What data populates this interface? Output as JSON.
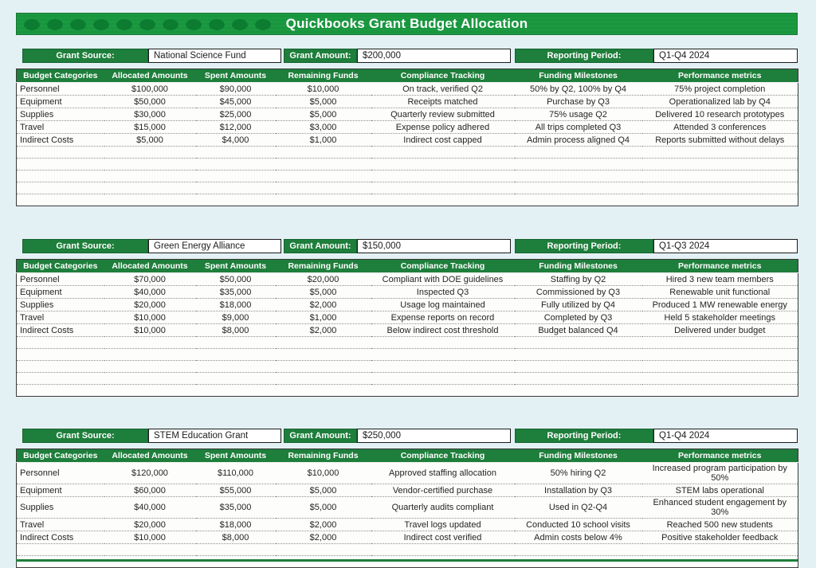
{
  "title": "Quickbooks Grant Budget Allocation",
  "labels": {
    "grant_source": "Grant Source:",
    "grant_amount": "Grant Amount:",
    "reporting_period": "Reporting Period:"
  },
  "columns": [
    "Budget Categories",
    "Allocated Amounts",
    "Spent Amounts",
    "Remaining Funds",
    "Compliance Tracking",
    "Funding Milestones",
    "Performance metrics"
  ],
  "grants": [
    {
      "source": "National Science Fund",
      "amount": "$200,000",
      "period": "Q1-Q4 2024",
      "rows": [
        [
          "Personnel",
          "$100,000",
          "$90,000",
          "$10,000",
          "On track, verified Q2",
          "50% by Q2, 100% by Q4",
          "75% project completion"
        ],
        [
          "Equipment",
          "$50,000",
          "$45,000",
          "$5,000",
          "Receipts matched",
          "Purchase by Q3",
          "Operationalized lab by Q4"
        ],
        [
          "Supplies",
          "$30,000",
          "$25,000",
          "$5,000",
          "Quarterly review submitted",
          "75% usage Q2",
          "Delivered 10 research prototypes"
        ],
        [
          "Travel",
          "$15,000",
          "$12,000",
          "$3,000",
          "Expense policy adhered",
          "All trips completed Q3",
          "Attended 3 conferences"
        ],
        [
          "Indirect Costs",
          "$5,000",
          "$4,000",
          "$1,000",
          "Indirect cost capped",
          "Admin process aligned Q4",
          "Reports submitted without delays"
        ]
      ],
      "empty_rows": 5
    },
    {
      "source": "Green Energy Alliance",
      "amount": "$150,000",
      "period": "Q1-Q3 2024",
      "rows": [
        [
          "Personnel",
          "$70,000",
          "$50,000",
          "$20,000",
          "Compliant with DOE guidelines",
          "Staffing by Q2",
          "Hired 3 new team members"
        ],
        [
          "Equipment",
          "$40,000",
          "$35,000",
          "$5,000",
          "Inspected Q3",
          "Commissioned by Q3",
          "Renewable unit functional"
        ],
        [
          "Supplies",
          "$20,000",
          "$18,000",
          "$2,000",
          "Usage log maintained",
          "Fully utilized by Q4",
          "Produced 1 MW renewable energy"
        ],
        [
          "Travel",
          "$10,000",
          "$9,000",
          "$1,000",
          "Expense reports on record",
          "Completed by Q3",
          "Held 5 stakeholder meetings"
        ],
        [
          "Indirect Costs",
          "$10,000",
          "$8,000",
          "$2,000",
          "Below indirect cost threshold",
          "Budget balanced Q4",
          "Delivered under budget"
        ]
      ],
      "empty_rows": 5
    },
    {
      "source": "STEM Education Grant",
      "amount": "$250,000",
      "period": "Q1-Q4 2024",
      "rows": [
        [
          "Personnel",
          "$120,000",
          "$110,000",
          "$10,000",
          "Approved staffing allocation",
          "50% hiring Q2",
          "Increased program participation by 50%"
        ],
        [
          "Equipment",
          "$60,000",
          "$55,000",
          "$5,000",
          "Vendor-certified purchase",
          "Installation by Q3",
          "STEM labs operational"
        ],
        [
          "Supplies",
          "$40,000",
          "$35,000",
          "$5,000",
          "Quarterly audits compliant",
          "Used in Q2-Q4",
          "Enhanced student engagement by 30%"
        ],
        [
          "Travel",
          "$20,000",
          "$18,000",
          "$2,000",
          "Travel logs updated",
          "Conducted 10 school visits",
          "Reached 500 new students"
        ],
        [
          "Indirect Costs",
          "$10,000",
          "$8,000",
          "$2,000",
          "Indirect cost verified",
          "Admin costs below 4%",
          "Positive stakeholder feedback"
        ]
      ],
      "empty_rows": 2
    }
  ],
  "colors": {
    "header_green": "#1e7e3b",
    "title_green": "#18963e",
    "dot_green": "#0c7c31",
    "page_background": "#e4f1f4"
  }
}
